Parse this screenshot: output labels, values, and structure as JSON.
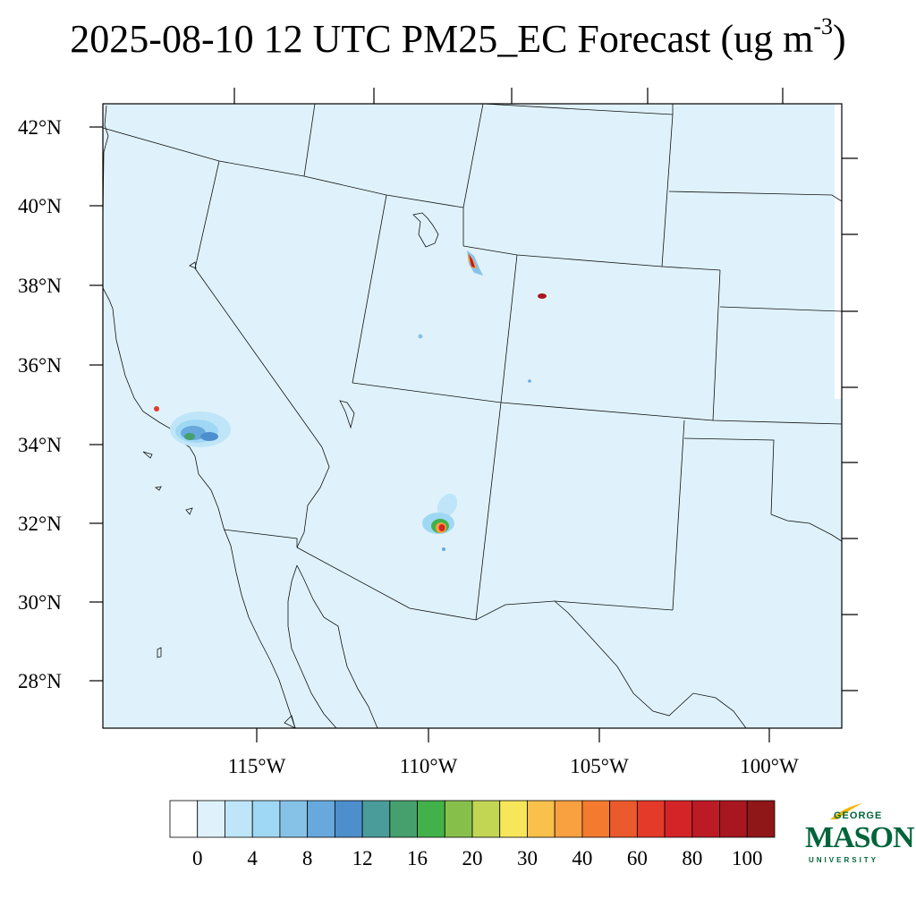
{
  "title": {
    "main": "2025-08-10 12 UTC PM25_EC Forecast (ug m",
    "exponent": "-3",
    "close": ")"
  },
  "map": {
    "lat_labels": [
      "42°N",
      "40°N",
      "38°N",
      "36°N",
      "34°N",
      "32°N",
      "30°N",
      "28°N"
    ],
    "lon_labels": [
      "115°W",
      "110°W",
      "105°W",
      "100°W"
    ],
    "background_color": "#dff2fb"
  },
  "colorbar": {
    "labels": [
      "0",
      "4",
      "8",
      "12",
      "16",
      "20",
      "30",
      "40",
      "60",
      "80",
      "100"
    ],
    "colors": [
      "#ffffff",
      "#dff2fb",
      "#bfe6f8",
      "#9fd8f4",
      "#86c2e8",
      "#68a9dd",
      "#4d8fcc",
      "#4a9c9a",
      "#45a06e",
      "#42b14a",
      "#86c04b",
      "#c2d654",
      "#f7e65a",
      "#f9c04c",
      "#f9a040",
      "#f47a30",
      "#ea5a2c",
      "#e33a2a",
      "#d42428",
      "#bc1b26",
      "#a8161f",
      "#901718"
    ]
  },
  "logo": {
    "top": "GEORGE",
    "main": "MASON",
    "bottom": "UNIVERSITY"
  }
}
